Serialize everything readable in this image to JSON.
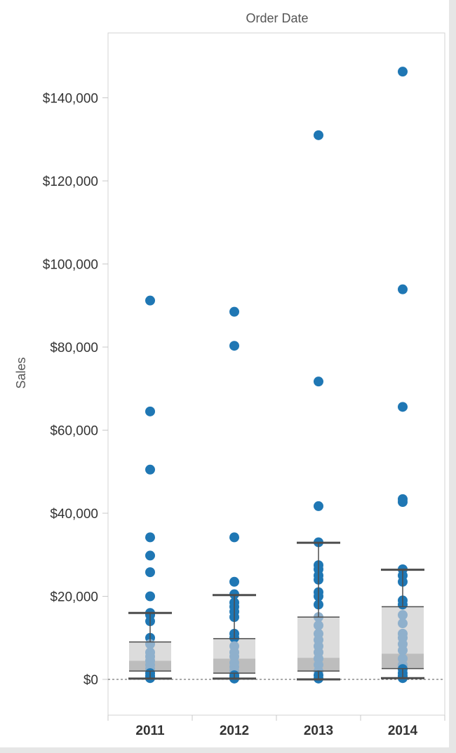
{
  "chart_data": {
    "type": "box-and-scatter",
    "title": "Order Date",
    "ylabel": "Sales",
    "xlabel": "",
    "ylim": [
      -9000,
      156000
    ],
    "y_ticks": [
      {
        "value": 0,
        "label": "$0"
      },
      {
        "value": 20000,
        "label": "$20,000"
      },
      {
        "value": 40000,
        "label": "$40,000"
      },
      {
        "value": 60000,
        "label": "$60,000"
      },
      {
        "value": 80000,
        "label": "$80,000"
      },
      {
        "value": 100000,
        "label": "$100,000"
      },
      {
        "value": 120000,
        "label": "$120,000"
      },
      {
        "value": 140000,
        "label": "$140,000"
      }
    ],
    "categories": [
      "2011",
      "2012",
      "2013",
      "2014"
    ],
    "zero_line": true,
    "colors": {
      "point": "#1f77b4",
      "point_in_box": "#8fb0cc",
      "box_upper": "#dcdcdc",
      "box_lower": "#bdbdbd",
      "whisker": "#4d4d4d"
    },
    "boxes": [
      {
        "category": "2011",
        "whisker_low": 200,
        "q1": 2000,
        "median": 4500,
        "q3": 9000,
        "whisker_high": 16000
      },
      {
        "category": "2012",
        "whisker_low": 200,
        "q1": 1500,
        "median": 5000,
        "q3": 9800,
        "whisker_high": 20300
      },
      {
        "category": "2013",
        "whisker_low": 0,
        "q1": 2000,
        "median": 5200,
        "q3": 15000,
        "whisker_high": 32900
      },
      {
        "category": "2014",
        "whisker_low": 300,
        "q1": 2600,
        "median": 6200,
        "q3": 17500,
        "whisker_high": 26400
      }
    ],
    "points": [
      {
        "category": "2011",
        "values": [
          91200,
          64500,
          50500,
          34200,
          29800,
          25800,
          20000,
          16000,
          15500,
          14000,
          10000,
          8500,
          6500,
          5500,
          4500,
          3500,
          2500,
          1500,
          800,
          300
        ]
      },
      {
        "category": "2012",
        "values": [
          88500,
          80300,
          34200,
          23500,
          20500,
          18500,
          17500,
          16300,
          15000,
          11000,
          10000,
          8000,
          6500,
          5500,
          4000,
          3000,
          2000,
          1000,
          500,
          200
        ]
      },
      {
        "category": "2013",
        "values": [
          131000,
          71700,
          41700,
          33000,
          27500,
          26500,
          25000,
          24000,
          21000,
          20000,
          18000,
          15000,
          13000,
          11000,
          9500,
          8000,
          6500,
          5000,
          3500,
          2000,
          1000,
          200
        ]
      },
      {
        "category": "2014",
        "values": [
          146300,
          93900,
          65600,
          43400,
          42700,
          26500,
          25000,
          23500,
          19000,
          18000,
          15500,
          13500,
          11000,
          10000,
          8500,
          7000,
          5000,
          3500,
          2500,
          1500,
          800,
          300
        ]
      }
    ]
  }
}
